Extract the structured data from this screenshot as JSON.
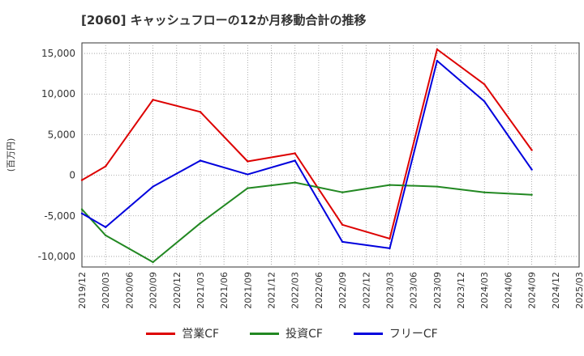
{
  "chart_data": {
    "type": "line",
    "title": "[2060]  キャッシュフローの12か月移動合計の推移",
    "ylabel": "(百万円)",
    "xlabel": "",
    "ylim": [
      -11300,
      16300
    ],
    "yticks": [
      15000,
      10000,
      5000,
      0,
      -5000,
      -10000
    ],
    "ytick_labels": [
      "15,000",
      "10,000",
      "5,000",
      "0",
      "-5,000",
      "-10,000"
    ],
    "categories": [
      "2019/12",
      "2020/03",
      "2020/06",
      "2020/09",
      "2020/12",
      "2021/03",
      "2021/06",
      "2021/09",
      "2021/12",
      "2022/03",
      "2022/06",
      "2022/09",
      "2022/12",
      "2023/03",
      "2023/06",
      "2023/09",
      "2023/12",
      "2024/03",
      "2024/06",
      "2024/09",
      "2024/12",
      "2025/03"
    ],
    "grid": true,
    "legend_position": "bottom",
    "series": [
      {
        "name": "営業CF",
        "color": "#dd0000",
        "values": [
          -600,
          1100,
          null,
          9300,
          null,
          7800,
          null,
          1700,
          null,
          2700,
          null,
          -6100,
          null,
          -7800,
          null,
          15500,
          null,
          11200,
          null,
          3100,
          null,
          null
        ]
      },
      {
        "name": "投資CF",
        "color": "#228822",
        "values": [
          -4200,
          -7400,
          null,
          -10700,
          null,
          -5900,
          null,
          -1600,
          null,
          -900,
          null,
          -2100,
          null,
          -1200,
          null,
          -1400,
          null,
          -2100,
          null,
          -2400,
          null,
          null
        ]
      },
      {
        "name": "フリーCF",
        "color": "#0000dd",
        "values": [
          -4700,
          -6400,
          null,
          -1400,
          null,
          1800,
          null,
          100,
          null,
          1800,
          null,
          -8200,
          null,
          -9000,
          null,
          14100,
          null,
          9100,
          null,
          700,
          null,
          null
        ]
      }
    ]
  }
}
